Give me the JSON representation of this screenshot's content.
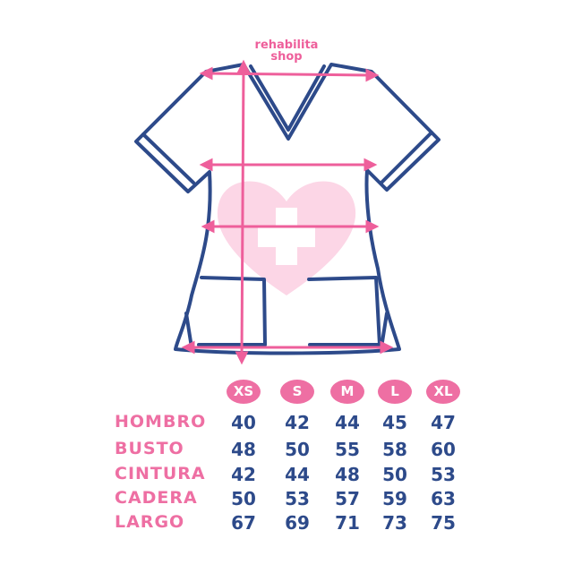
{
  "brand": {
    "line1": "rehabilita",
    "line2": "shop"
  },
  "colors": {
    "outline": "#2d4a8a",
    "accent": "#ee5f9b",
    "heart": "#fcd6e6"
  },
  "sizes": [
    "XS",
    "S",
    "M",
    "L",
    "XL"
  ],
  "rows": [
    {
      "label": "HOMBRO",
      "values": [
        "40",
        "42",
        "44",
        "45",
        "47"
      ]
    },
    {
      "label": "BUSTO",
      "values": [
        "48",
        "50",
        "55",
        "58",
        "60"
      ]
    },
    {
      "label": "CINTURA",
      "values": [
        "42",
        "44",
        "48",
        "50",
        "53"
      ]
    },
    {
      "label": "CADERA",
      "values": [
        "50",
        "53",
        "57",
        "59",
        "63"
      ]
    },
    {
      "label": "LARGO",
      "values": [
        "67",
        "69",
        "71",
        "73",
        "75"
      ]
    }
  ]
}
